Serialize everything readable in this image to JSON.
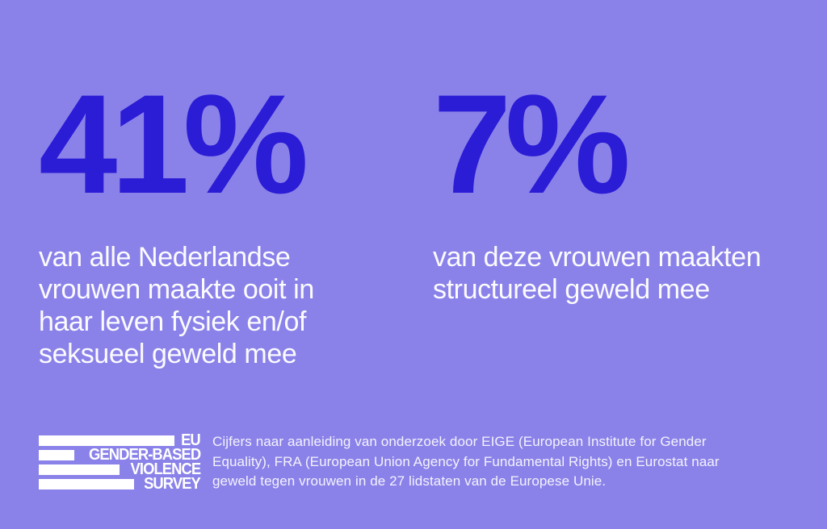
{
  "page": {
    "background_color": "#8A82E9",
    "accent_color": "#2B1CD5",
    "text_color": "#FFFFFF"
  },
  "chart_data": {
    "type": "table",
    "title": "",
    "stats": [
      {
        "value": 41,
        "unit": "%",
        "label": "van alle Nederlandse vrouwen maakte ooit in haar leven fysiek en/of seksueel geweld mee"
      },
      {
        "value": 7,
        "unit": "%",
        "label": "van deze vrouwen maakten structureel geweld mee"
      }
    ]
  },
  "stats": [
    {
      "value": "41%",
      "lines": [
        "van alle Nederlandse",
        "vrouwen maakte ooit in",
        "haar leven fysiek en/of",
        "seksueel geweld mee"
      ]
    },
    {
      "value": "7%",
      "lines": [
        "van deze vrouwen maakten",
        "structureel geweld mee"
      ]
    }
  ],
  "logo": {
    "rows": [
      {
        "label": "EU"
      },
      {
        "label": "GENDER-BASED"
      },
      {
        "label": "VIOLENCE"
      },
      {
        "label": "SURVEY"
      }
    ]
  },
  "footnote": {
    "lines": [
      "Cijfers naar aanleiding van onderzoek door EIGE (European Institute for Gender",
      "Equality), FRA (European Union Agency for Fundamental Rights) en Eurostat naar",
      "geweld tegen vrouwen in de 27 lidstaten van de Europese Unie."
    ]
  }
}
